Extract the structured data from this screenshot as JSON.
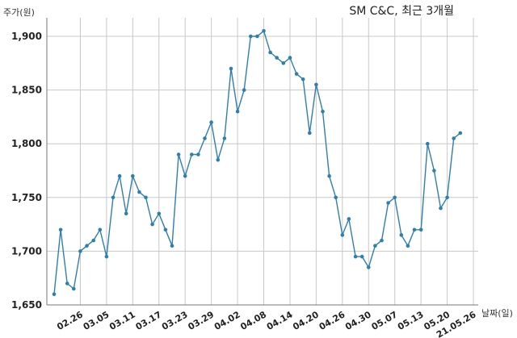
{
  "chart_data": {
    "type": "line",
    "title": "SM C&C, 최근 3개월",
    "ylabel": "주가(원)",
    "xlabel": "날짜(일)",
    "ylim": [
      1650,
      1920
    ],
    "yticks": [
      1650,
      1700,
      1750,
      1800,
      1850,
      1900
    ],
    "ytick_labels": [
      "1,650",
      "1,700",
      "1,750",
      "1,800",
      "1,850",
      "1,900"
    ],
    "grid": true,
    "xticks": [
      {
        "index": 4,
        "label": "02.26"
      },
      {
        "index": 8,
        "label": "03.05"
      },
      {
        "index": 12,
        "label": "03.11"
      },
      {
        "index": 16,
        "label": "03.17"
      },
      {
        "index": 20,
        "label": "03.23"
      },
      {
        "index": 24,
        "label": "03.29"
      },
      {
        "index": 28,
        "label": "04.02"
      },
      {
        "index": 32,
        "label": "04.08"
      },
      {
        "index": 36,
        "label": "04.14"
      },
      {
        "index": 40,
        "label": "04.20"
      },
      {
        "index": 44,
        "label": "04.26"
      },
      {
        "index": 48,
        "label": "04.30"
      },
      {
        "index": 52,
        "label": "05.07"
      },
      {
        "index": 56,
        "label": "05.13"
      },
      {
        "index": 60,
        "label": "05.20"
      },
      {
        "index": 64,
        "label": "21.05.26"
      }
    ],
    "values": [
      1660,
      1720,
      1670,
      1665,
      1700,
      1705,
      1710,
      1720,
      1695,
      1750,
      1770,
      1735,
      1770,
      1755,
      1750,
      1725,
      1735,
      1720,
      1705,
      1790,
      1770,
      1790,
      1790,
      1805,
      1820,
      1785,
      1805,
      1870,
      1830,
      1850,
      1900,
      1900,
      1905,
      1885,
      1880,
      1875,
      1880,
      1865,
      1860,
      1810,
      1855,
      1830,
      1770,
      1750,
      1715,
      1730,
      1695,
      1695,
      1685,
      1705,
      1710,
      1745,
      1750,
      1715,
      1705,
      1720,
      1720,
      1800,
      1775,
      1740,
      1750,
      1805,
      1810
    ]
  }
}
